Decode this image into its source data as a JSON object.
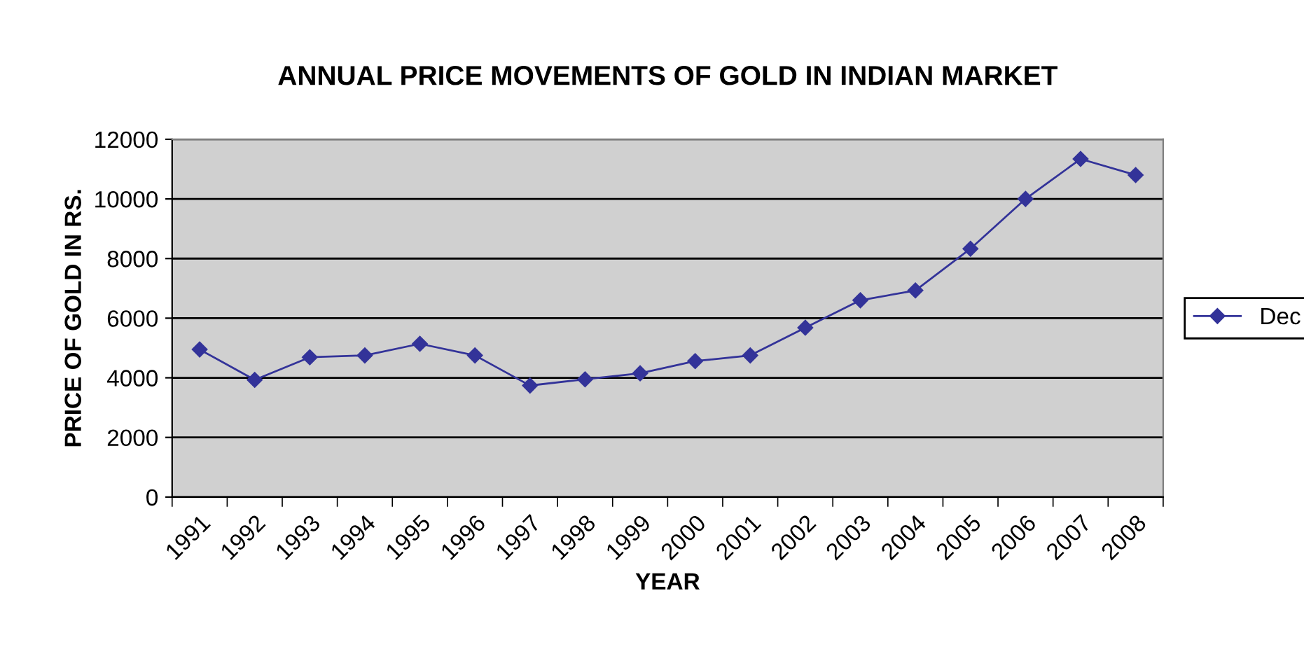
{
  "chart_data": {
    "type": "line",
    "title": "ANNUAL PRICE MOVEMENTS OF GOLD IN INDIAN MARKET",
    "xlabel": "YEAR",
    "ylabel": "PRICE OF GOLD IN RS.",
    "categories": [
      "1991",
      "1992",
      "1993",
      "1994",
      "1995",
      "1996",
      "1997",
      "1998",
      "1999",
      "2000",
      "2001",
      "2002",
      "2003",
      "2004",
      "2005",
      "2006",
      "2007",
      "2008"
    ],
    "series": [
      {
        "name": "Dec",
        "color": "#333399",
        "values": [
          4950,
          3930,
          4690,
          4750,
          5140,
          4750,
          3740,
          3950,
          4150,
          4560,
          4750,
          5680,
          6600,
          6930,
          8330,
          10000,
          11340,
          10800
        ]
      }
    ],
    "ylim": [
      0,
      12000
    ],
    "yticks": [
      0,
      2000,
      4000,
      6000,
      8000,
      10000,
      12000
    ],
    "grid": "y",
    "legend": "right",
    "marker": "diamond",
    "line_style": "solid"
  }
}
